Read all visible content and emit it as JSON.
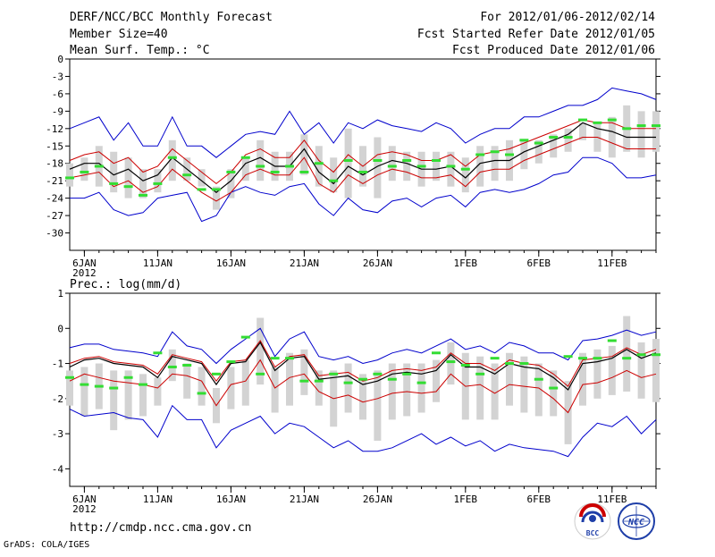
{
  "header": {
    "title": "DERF/NCC/BCC Monthly Forecast",
    "member_size": "Member Size=40",
    "forecast_period": "For 2012/01/06-2012/02/14",
    "started_refer": "Fcst Started Refer Date 2012/01/05",
    "produced_date": "Fcst Produced Date 2012/01/06"
  },
  "footer": {
    "url": "http://cmdp.ncc.cma.gov.cn",
    "grads_credit": "GrADS: COLA/IGES",
    "logo_bcc": "BCC",
    "logo_ncc": "NCC"
  },
  "colors": {
    "envelope": "#0000cc",
    "spread": "#cc0000",
    "mean": "#000000",
    "box": "#d3d3d3",
    "obs": "#33dd33"
  },
  "chart_data": [
    {
      "type": "line",
      "title": "Mean Surf. Temp.: °C",
      "ylim": [
        -33,
        0
      ],
      "yticks": [
        0,
        -3,
        -6,
        -9,
        -12,
        -15,
        -18,
        -21,
        -24,
        -27,
        -30
      ],
      "xlim": [
        0,
        40
      ],
      "x_ticks": [
        {
          "day": 1,
          "label": "6JAN",
          "sub": "2012"
        },
        {
          "day": 6,
          "label": "11JAN"
        },
        {
          "day": 11,
          "label": "16JAN"
        },
        {
          "day": 16,
          "label": "21JAN"
        },
        {
          "day": 21,
          "label": "26JAN"
        },
        {
          "day": 27,
          "label": "1FEB"
        },
        {
          "day": 32,
          "label": "6FEB"
        },
        {
          "day": 37,
          "label": "11FEB"
        }
      ],
      "series": [
        {
          "name": "ensemble-mean",
          "values": [
            -19,
            -18,
            -18,
            -20,
            -19,
            -21,
            -20,
            -17,
            -19,
            -21,
            -23,
            -21,
            -18,
            -17,
            -18.5,
            -18.5,
            -15.5,
            -19.5,
            -21.5,
            -18.5,
            -20,
            -18.5,
            -17.5,
            -18,
            -19,
            -19,
            -18.5,
            -20.5,
            -18,
            -17.5,
            -17.5,
            -16,
            -15,
            -14,
            -13,
            -11,
            -12,
            -12.5,
            -13.5,
            -13.5,
            -13.5
          ]
        },
        {
          "name": "spread-upper",
          "values": [
            -17.5,
            -16.5,
            -16,
            -18,
            -17,
            -19.5,
            -18.5,
            -15.5,
            -17.5,
            -19.5,
            -21.5,
            -19.5,
            -16.5,
            -15.5,
            -17,
            -17,
            -14,
            -17.5,
            -19.5,
            -16.5,
            -18.5,
            -16.5,
            -16,
            -16.5,
            -17.5,
            -17.5,
            -16.5,
            -18.5,
            -16.5,
            -16,
            -15.5,
            -14.5,
            -13.5,
            -12.5,
            -11.5,
            -10.5,
            -11,
            -11,
            -12,
            -12,
            -12
          ]
        },
        {
          "name": "spread-lower",
          "values": [
            -20.5,
            -20,
            -19.5,
            -22,
            -21,
            -23,
            -22,
            -19,
            -21,
            -23,
            -24.5,
            -23,
            -20,
            -19,
            -20,
            -20,
            -17,
            -21.5,
            -23,
            -20,
            -21.5,
            -20,
            -19,
            -19.5,
            -20.5,
            -20.5,
            -20,
            -22,
            -19.5,
            -19,
            -19,
            -17.5,
            -16.5,
            -15.5,
            -14.5,
            -13.5,
            -13.5,
            -14.5,
            -15.5,
            -15.5,
            -15.5
          ]
        },
        {
          "name": "ensemble-max",
          "values": [
            -12,
            -11,
            -10,
            -14,
            -11,
            -15,
            -15,
            -10,
            -15,
            -15,
            -17,
            -15,
            -13,
            -12.5,
            -13,
            -9,
            -13,
            -11,
            -14.5,
            -11,
            -12,
            -10.5,
            -11.5,
            -12,
            -12.5,
            -11,
            -12,
            -14.5,
            -13,
            -12,
            -12,
            -10,
            -10,
            -9,
            -8,
            -8,
            -7,
            -5,
            -5.5,
            -6,
            -7
          ]
        },
        {
          "name": "ensemble-min",
          "values": [
            -24,
            -24,
            -23,
            -26,
            -27,
            -26.5,
            -24,
            -23.5,
            -23,
            -28,
            -27,
            -23,
            -22,
            -23,
            -23.5,
            -22,
            -21.5,
            -25,
            -27,
            -24,
            -26,
            -26.5,
            -24.5,
            -24,
            -25.5,
            -24,
            -23.5,
            -25.5,
            -23,
            -22.5,
            -23,
            -22.5,
            -21.5,
            -20,
            -19.5,
            -17,
            -17,
            -18,
            -20.5,
            -20.5,
            -20
          ]
        },
        {
          "name": "box-upper",
          "values": [
            -18,
            -17,
            -15,
            -16,
            -17,
            -19,
            -19,
            -14,
            -17,
            -19,
            -22,
            -19,
            -17,
            -14,
            -16,
            -16,
            -13,
            -15,
            -17,
            -12,
            -15,
            -13.5,
            -15,
            -16,
            -16,
            -16,
            -16,
            -17,
            -15,
            -15,
            -14,
            -14,
            -14,
            -13,
            -12,
            -11,
            -11,
            -10,
            -8,
            -9,
            -9
          ]
        },
        {
          "name": "box-lower",
          "values": [
            -22,
            -21,
            -22,
            -23,
            -24,
            -24,
            -23,
            -21,
            -21,
            -22,
            -26,
            -24,
            -21,
            -21,
            -21,
            -21,
            -20,
            -22,
            -23,
            -24,
            -22,
            -24,
            -21,
            -21,
            -22,
            -21,
            -22,
            -23,
            -22,
            -21,
            -21,
            -19,
            -18,
            -17,
            -16,
            -14,
            -16,
            -17,
            -16,
            -17,
            -16
          ]
        },
        {
          "name": "observed",
          "values": [
            -20.5,
            -19.5,
            -18.5,
            -21.5,
            -22,
            -23.5,
            -21.5,
            -17,
            -20,
            -22.5,
            -22.5,
            -19.5,
            -17,
            -18.5,
            -19.5,
            -18.5,
            -19.5,
            -18,
            -21,
            -17.5,
            -19.5,
            -17.5,
            -18.5,
            -17.5,
            -18.5,
            -17.5,
            -18.5,
            -19,
            -16.5,
            -16,
            -16.5,
            -14,
            -14.5,
            -13.5,
            -13.5,
            -10.5,
            -11,
            -10.5,
            -12,
            -11.5,
            -11.5
          ]
        }
      ]
    },
    {
      "type": "line",
      "title": "Prec.: log(mm/d)",
      "ylim": [
        -4.5,
        1
      ],
      "yticks": [
        1,
        0,
        -1,
        -2,
        -3,
        -4
      ],
      "xlim": [
        0,
        40
      ],
      "x_ticks": [
        {
          "day": 1,
          "label": "6JAN",
          "sub": "2012"
        },
        {
          "day": 6,
          "label": "11JAN"
        },
        {
          "day": 11,
          "label": "16JAN"
        },
        {
          "day": 16,
          "label": "21JAN"
        },
        {
          "day": 21,
          "label": "26JAN"
        },
        {
          "day": 27,
          "label": "1FEB"
        },
        {
          "day": 32,
          "label": "6FEB"
        },
        {
          "day": 37,
          "label": "11FEB"
        }
      ],
      "series": [
        {
          "name": "ensemble-mean",
          "values": [
            -1.1,
            -0.9,
            -0.85,
            -1.0,
            -1.05,
            -1.1,
            -1.4,
            -0.8,
            -0.9,
            -1.0,
            -1.6,
            -1.0,
            -0.95,
            -0.4,
            -1.2,
            -0.85,
            -0.8,
            -1.45,
            -1.4,
            -1.35,
            -1.6,
            -1.5,
            -1.3,
            -1.25,
            -1.3,
            -1.2,
            -0.75,
            -1.1,
            -1.1,
            -1.3,
            -1.0,
            -1.1,
            -1.15,
            -1.4,
            -1.75,
            -1.0,
            -0.95,
            -0.85,
            -0.6,
            -0.85,
            -0.7
          ]
        },
        {
          "name": "spread-upper",
          "values": [
            -1.0,
            -0.85,
            -0.8,
            -0.95,
            -1.0,
            -1.05,
            -1.3,
            -0.75,
            -0.85,
            -0.95,
            -1.5,
            -0.95,
            -0.9,
            -0.35,
            -1.1,
            -0.8,
            -0.75,
            -1.35,
            -1.3,
            -1.25,
            -1.5,
            -1.4,
            -1.2,
            -1.15,
            -1.2,
            -1.1,
            -0.7,
            -1.0,
            -1.0,
            -1.2,
            -0.9,
            -1.0,
            -1.05,
            -1.3,
            -1.65,
            -0.9,
            -0.85,
            -0.8,
            -0.55,
            -0.75,
            -0.6
          ]
        },
        {
          "name": "spread-lower",
          "values": [
            -1.5,
            -1.3,
            -1.4,
            -1.5,
            -1.55,
            -1.6,
            -1.7,
            -1.3,
            -1.35,
            -1.5,
            -2.2,
            -1.6,
            -1.5,
            -0.9,
            -1.7,
            -1.4,
            -1.3,
            -1.8,
            -2.0,
            -1.9,
            -2.1,
            -2.0,
            -1.85,
            -1.8,
            -1.85,
            -1.8,
            -1.3,
            -1.65,
            -1.6,
            -1.85,
            -1.6,
            -1.65,
            -1.7,
            -2.0,
            -2.4,
            -1.6,
            -1.55,
            -1.4,
            -1.2,
            -1.4,
            -1.3
          ]
        },
        {
          "name": "ensemble-max",
          "values": [
            -0.55,
            -0.45,
            -0.45,
            -0.6,
            -0.65,
            -0.7,
            -0.8,
            -0.1,
            -0.5,
            -0.6,
            -1.0,
            -0.6,
            -0.3,
            0.0,
            -0.8,
            -0.3,
            -0.1,
            -0.8,
            -0.9,
            -0.8,
            -1.0,
            -0.9,
            -0.7,
            -0.6,
            -0.7,
            -0.5,
            -0.3,
            -0.6,
            -0.5,
            -0.7,
            -0.4,
            -0.5,
            -0.7,
            -0.7,
            -0.9,
            -0.35,
            -0.3,
            -0.2,
            -0.05,
            -0.2,
            -0.1
          ]
        },
        {
          "name": "ensemble-min",
          "values": [
            -2.3,
            -2.5,
            -2.45,
            -2.4,
            -2.55,
            -2.6,
            -3.1,
            -2.2,
            -2.6,
            -2.6,
            -3.4,
            -2.9,
            -2.7,
            -2.5,
            -3.0,
            -2.7,
            -2.8,
            -3.1,
            -3.4,
            -3.2,
            -3.5,
            -3.5,
            -3.4,
            -3.2,
            -3.0,
            -3.3,
            -3.1,
            -3.35,
            -3.2,
            -3.5,
            -3.3,
            -3.4,
            -3.45,
            -3.5,
            -3.65,
            -3.1,
            -2.7,
            -2.8,
            -2.5,
            -3.0,
            -2.6
          ]
        },
        {
          "name": "box-upper",
          "values": [
            -1.2,
            -1.1,
            -1.0,
            -1.2,
            -1.2,
            -1.3,
            -1.4,
            -0.6,
            -1.0,
            -1.1,
            -1.7,
            -1.1,
            -0.9,
            0.3,
            -1.1,
            -0.7,
            -0.6,
            -1.2,
            -1.2,
            -1.0,
            -1.3,
            -1.2,
            -1.0,
            -1.0,
            -1.0,
            -0.9,
            -0.4,
            -0.7,
            -0.8,
            -1.0,
            -0.7,
            -0.8,
            -1.0,
            -1.2,
            -1.5,
            -0.7,
            -0.6,
            -0.5,
            0.35,
            -0.4,
            -0.3
          ]
        },
        {
          "name": "box-lower",
          "values": [
            -2.2,
            -2.5,
            -2.3,
            -2.9,
            -2.6,
            -2.5,
            -2.2,
            -1.5,
            -2.0,
            -2.2,
            -2.7,
            -2.3,
            -2.2,
            -1.6,
            -2.4,
            -2.2,
            -1.9,
            -2.2,
            -2.8,
            -2.4,
            -2.6,
            -3.2,
            -2.6,
            -2.5,
            -2.4,
            -2.1,
            -1.6,
            -2.6,
            -2.6,
            -2.6,
            -2.2,
            -2.4,
            -2.5,
            -2.5,
            -3.3,
            -2.2,
            -2.0,
            -1.9,
            -1.8,
            -2.0,
            -2.1
          ]
        },
        {
          "name": "observed",
          "values": [
            -1.4,
            -1.6,
            -1.65,
            -1.7,
            -1.4,
            -1.6,
            -0.7,
            -1.1,
            -1.05,
            -1.85,
            -1.3,
            -0.95,
            -0.25,
            -1.3,
            -0.85,
            -0.85,
            -1.5,
            -1.5,
            -1.3,
            -1.55,
            -1.45,
            -1.3,
            -1.45,
            -1.3,
            -1.55,
            -0.7,
            -0.95,
            -1.05,
            -1.3,
            -0.85,
            -1.0,
            -1.0,
            -1.45,
            -1.7,
            -0.8,
            -0.85,
            -0.85,
            -0.35,
            -0.85,
            -0.75,
            -0.75
          ]
        }
      ]
    }
  ]
}
